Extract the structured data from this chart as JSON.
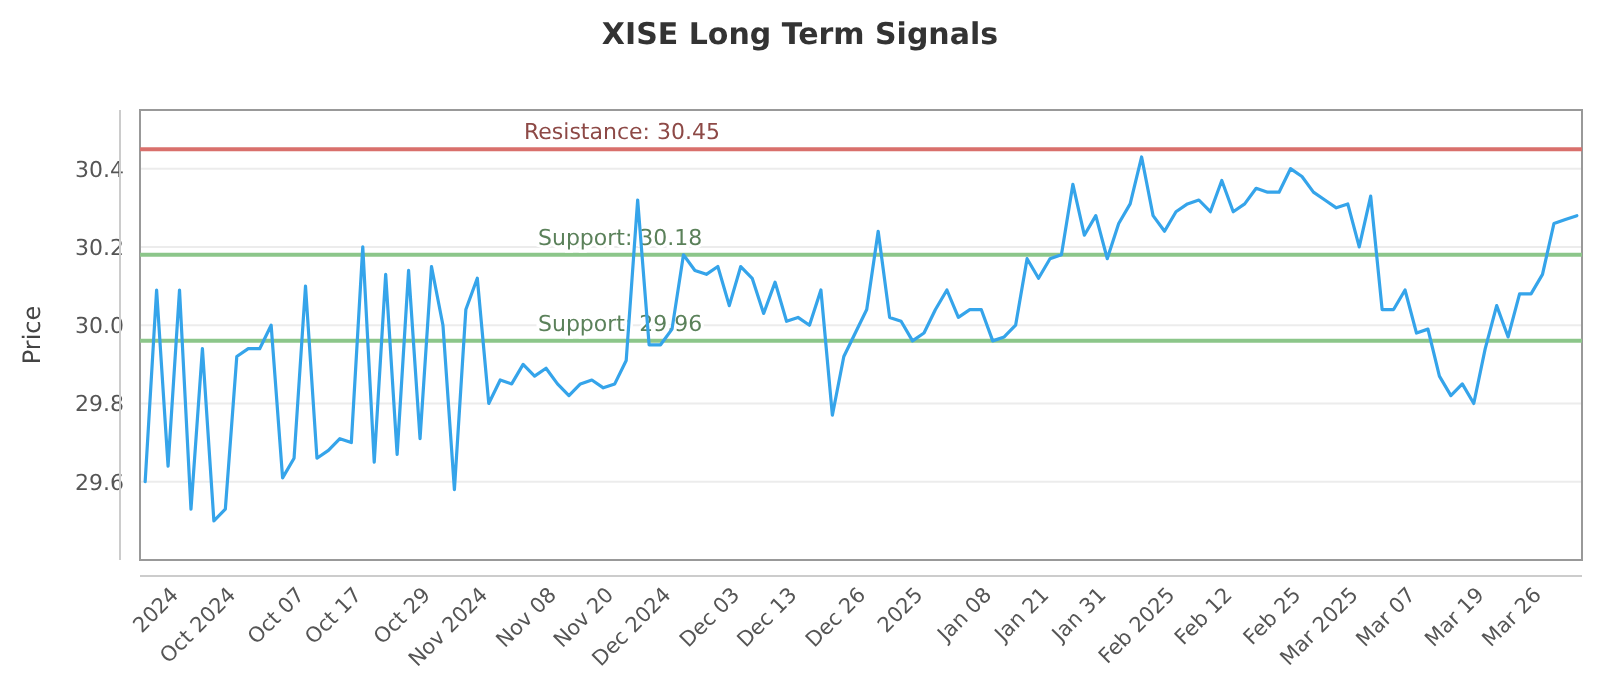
{
  "chart_data": {
    "type": "line",
    "title": "XISE Long Term Signals",
    "ylabel": "Price",
    "categories": [
      null,
      null,
      null,
      "2024",
      null,
      null,
      null,
      null,
      "Oct 2024",
      null,
      null,
      null,
      null,
      null,
      "Oct 07",
      null,
      null,
      null,
      null,
      "Oct 17",
      null,
      null,
      null,
      null,
      null,
      "Oct 29",
      null,
      null,
      null,
      null,
      "Nov 2024",
      null,
      null,
      null,
      null,
      null,
      "Nov 08",
      null,
      null,
      null,
      null,
      "Nov 20",
      null,
      null,
      null,
      null,
      "Dec 2024",
      null,
      null,
      null,
      null,
      null,
      "Dec 03",
      null,
      null,
      null,
      null,
      "Dec 13",
      null,
      null,
      null,
      null,
      null,
      "Dec 26",
      null,
      null,
      null,
      null,
      "2025",
      null,
      null,
      null,
      null,
      null,
      "Jan 08",
      null,
      null,
      null,
      null,
      "Jan 21",
      null,
      null,
      null,
      null,
      "Jan 31",
      null,
      null,
      null,
      null,
      null,
      "Feb 2025",
      null,
      null,
      null,
      null,
      "Feb 12",
      null,
      null,
      null,
      null,
      null,
      "Feb 25",
      null,
      null,
      null,
      null,
      "Mar 2025",
      null,
      null,
      null,
      null,
      "Mar 07",
      null,
      null,
      null,
      null,
      null,
      "Mar 19",
      null,
      null,
      null,
      null,
      "Mar 26",
      null,
      null,
      null
    ],
    "series": [
      {
        "color": "#35a4ea",
        "values": [
          29.6,
          30.09,
          29.64,
          30.09,
          29.53,
          29.94,
          29.5,
          29.53,
          29.92,
          29.94,
          29.94,
          30.0,
          29.61,
          29.66,
          30.1,
          29.66,
          29.68,
          29.71,
          29.7,
          30.2,
          29.65,
          30.13,
          29.67,
          30.14,
          29.71,
          30.15,
          30.0,
          29.58,
          30.04,
          30.12,
          29.8,
          29.86,
          29.85,
          29.9,
          29.87,
          29.89,
          29.85,
          29.82,
          29.85,
          29.86,
          29.84,
          29.85,
          29.91,
          30.32,
          29.95,
          29.95,
          29.99,
          30.18,
          30.14,
          30.13,
          30.15,
          30.05,
          30.15,
          30.12,
          30.03,
          30.11,
          30.01,
          30.02,
          30.0,
          30.09,
          29.77,
          29.92,
          29.98,
          30.04,
          30.24,
          30.02,
          30.01,
          29.96,
          29.98,
          30.04,
          30.09,
          30.02,
          30.04,
          30.04,
          29.96,
          29.97,
          30.0,
          30.17,
          30.12,
          30.17,
          30.18,
          30.36,
          30.23,
          30.28,
          30.17,
          30.26,
          30.31,
          30.43,
          30.28,
          30.24,
          30.29,
          30.31,
          30.32,
          30.29,
          30.37,
          30.29,
          30.31,
          30.35,
          30.34,
          30.34,
          30.4,
          30.38,
          30.34,
          30.32,
          30.3,
          30.31,
          30.2,
          30.33,
          30.04,
          30.04,
          30.09,
          29.98,
          29.99,
          29.87,
          29.82,
          29.85,
          29.8,
          29.94,
          30.05,
          29.97,
          30.08,
          30.08,
          30.13,
          30.26,
          30.27,
          30.28
        ]
      }
    ],
    "ylim": [
      29.4,
      30.55
    ],
    "yticks": [
      {
        "value": 29.6,
        "label": "29.6"
      },
      {
        "value": 29.8,
        "label": "29.8"
      },
      {
        "value": 30.0,
        "label": "30.0"
      },
      {
        "value": 30.2,
        "label": "30.2"
      },
      {
        "value": 30.4,
        "label": "30.4"
      }
    ],
    "grid": "y",
    "line_style": "solid",
    "marker": "none",
    "ref_lines": [
      {
        "axis": "y",
        "value": 30.45,
        "label": "Resistance: 30.45",
        "color": "#d9706c"
      },
      {
        "axis": "y",
        "value": 30.18,
        "label": "Support: 30.18",
        "color": "#8cc68a"
      },
      {
        "axis": "y",
        "value": 29.96,
        "label": "Support: 29.96",
        "color": "#8cc68a"
      }
    ]
  }
}
